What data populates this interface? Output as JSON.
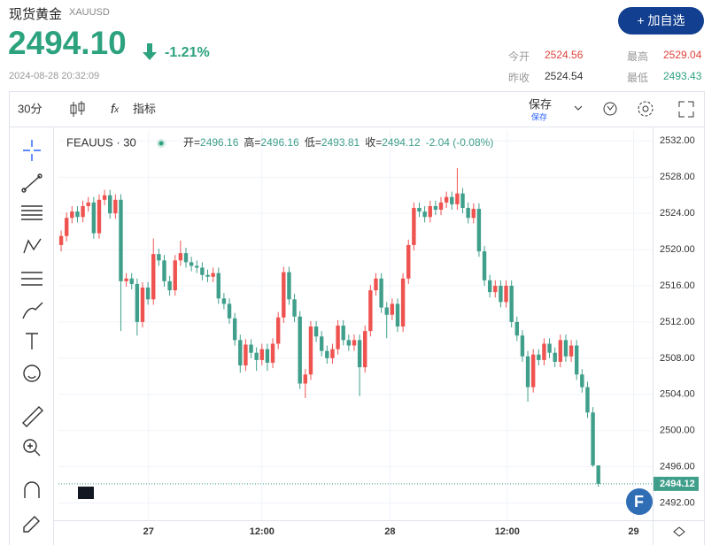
{
  "header": {
    "name": "现货黄金",
    "symbol": "XAUUSD",
    "price": "2494.10",
    "change": "-1.21%",
    "time": "2024-08-28 20:32:09",
    "button": "+ 加自选",
    "stats": [
      [
        "今开",
        "2524.56"
      ],
      [
        "最高",
        "2529.04"
      ],
      [
        "昨收",
        "2524.54"
      ],
      [
        "最低",
        "2493.43"
      ]
    ]
  },
  "toolbar": {
    "interval": "30分",
    "indicators": "指标",
    "save": "保存",
    "save_sub": "保存"
  },
  "chart_data": {
    "type": "candlestick",
    "title": "FEAUUS · 30",
    "ohlc_labels": [
      "开=",
      "高=",
      "低=",
      "收="
    ],
    "change_text": "-2.04 (-0.08%)",
    "up_color": "#ef5350",
    "down_color": "#3f9f8b",
    "xlim": [
      -0.5,
      109
    ],
    "ylim": [
      2490.1,
      2533.2
    ],
    "xticks": [
      {
        "value": 16.1,
        "label": "27"
      },
      {
        "value": 37,
        "label": "12:00"
      },
      {
        "value": 60.6,
        "label": "28"
      },
      {
        "value": 82.2,
        "label": "12:00"
      },
      {
        "value": 105.5,
        "label": "29"
      }
    ],
    "yticks": [
      {
        "value": 2492,
        "label": "2492.00"
      },
      {
        "value": 2496,
        "label": "2496.00"
      },
      {
        "value": 2500,
        "label": "2500.00"
      },
      {
        "value": 2504,
        "label": "2504.00"
      },
      {
        "value": 2508,
        "label": "2508.00"
      },
      {
        "value": 2512,
        "label": "2512.00"
      },
      {
        "value": 2516,
        "label": "2516.00"
      },
      {
        "value": 2520,
        "label": "2520.00"
      },
      {
        "value": 2524,
        "label": "2524.00"
      },
      {
        "value": 2528,
        "label": "2528.00"
      },
      {
        "value": 2532,
        "label": "2532.00"
      }
    ],
    "grid": true,
    "ohlc": [
      [
        2520.5,
        2522.1,
        2519.8,
        2521.5
      ],
      [
        2521.5,
        2524.1,
        2520.9,
        2523.5
      ],
      [
        2523.5,
        2524.8,
        2522.9,
        2524.2
      ],
      [
        2524.2,
        2524.8,
        2523.0,
        2523.6
      ],
      [
        2523.6,
        2525.4,
        2523.0,
        2524.8
      ],
      [
        2524.8,
        2525.8,
        2524.2,
        2525.2
      ],
      [
        2525.2,
        2525.8,
        2521.2,
        2521.8
      ],
      [
        2521.8,
        2526.1,
        2521.2,
        2525.5
      ],
      [
        2525.5,
        2526.6,
        2524.9,
        2526.0
      ],
      [
        2526.0,
        2526.6,
        2523.4,
        2524.0
      ],
      [
        2524.0,
        2526.1,
        2523.4,
        2525.5
      ],
      [
        2525.5,
        2526.1,
        2511.0,
        2516.5
      ],
      [
        2516.5,
        2517.4,
        2515.9,
        2516.8
      ],
      [
        2516.8,
        2517.4,
        2515.6,
        2516.2
      ],
      [
        2516.2,
        2516.8,
        2510.5,
        2512.0
      ],
      [
        2512.0,
        2516.4,
        2511.4,
        2515.8
      ],
      [
        2515.8,
        2516.4,
        2513.9,
        2514.5
      ],
      [
        2514.5,
        2521.2,
        2513.9,
        2519.5
      ],
      [
        2519.5,
        2520.1,
        2518.2,
        2518.8
      ],
      [
        2518.8,
        2519.4,
        2515.9,
        2516.5
      ],
      [
        2516.5,
        2517.1,
        2514.9,
        2515.5
      ],
      [
        2515.5,
        2519.4,
        2514.9,
        2518.8
      ],
      [
        2518.8,
        2521.0,
        2518.2,
        2519.6
      ],
      [
        2519.6,
        2520.2,
        2518.0,
        2518.6
      ],
      [
        2518.6,
        2519.2,
        2517.6,
        2518.2
      ],
      [
        2518.2,
        2518.8,
        2517.4,
        2518.0
      ],
      [
        2518.0,
        2518.6,
        2516.6,
        2517.2
      ],
      [
        2517.2,
        2517.8,
        2516.4,
        2517.0
      ],
      [
        2517.0,
        2518.0,
        2516.4,
        2517.4
      ],
      [
        2517.4,
        2518.0,
        2514.0,
        2514.6
      ],
      [
        2514.6,
        2515.2,
        2513.4,
        2514.0
      ],
      [
        2514.0,
        2514.6,
        2511.8,
        2512.4
      ],
      [
        2512.4,
        2513.0,
        2509.4,
        2510.0
      ],
      [
        2510.0,
        2510.6,
        2506.4,
        2507.2
      ],
      [
        2507.2,
        2510.1,
        2506.6,
        2509.5
      ],
      [
        2509.5,
        2510.1,
        2508.0,
        2508.6
      ],
      [
        2508.6,
        2509.2,
        2506.6,
        2507.8
      ],
      [
        2507.8,
        2509.6,
        2507.2,
        2509.0
      ],
      [
        2509.0,
        2509.6,
        2506.6,
        2507.5
      ],
      [
        2507.5,
        2510.2,
        2506.9,
        2509.6
      ],
      [
        2509.6,
        2513.1,
        2509.0,
        2512.5
      ],
      [
        2512.5,
        2518.1,
        2511.9,
        2517.5
      ],
      [
        2517.5,
        2518.1,
        2513.9,
        2514.5
      ],
      [
        2514.5,
        2515.1,
        2512.0,
        2512.6
      ],
      [
        2512.6,
        2513.2,
        2504.6,
        2505.2
      ],
      [
        2505.2,
        2506.8,
        2503.6,
        2506.2
      ],
      [
        2506.2,
        2512.1,
        2505.6,
        2511.5
      ],
      [
        2511.5,
        2512.1,
        2509.8,
        2510.4
      ],
      [
        2510.4,
        2511.0,
        2508.2,
        2508.8
      ],
      [
        2508.8,
        2509.4,
        2507.4,
        2508.0
      ],
      [
        2508.0,
        2509.6,
        2507.4,
        2509.0
      ],
      [
        2509.0,
        2512.2,
        2508.4,
        2511.6
      ],
      [
        2511.6,
        2512.2,
        2509.4,
        2510.0
      ],
      [
        2510.0,
        2510.6,
        2508.8,
        2509.4
      ],
      [
        2509.4,
        2510.6,
        2508.8,
        2510.0
      ],
      [
        2510.0,
        2510.6,
        2503.8,
        2507.0
      ],
      [
        2507.0,
        2511.6,
        2506.4,
        2511.0
      ],
      [
        2511.0,
        2516.1,
        2510.4,
        2515.5
      ],
      [
        2515.5,
        2517.4,
        2514.9,
        2516.8
      ],
      [
        2516.8,
        2517.4,
        2513.0,
        2513.6
      ],
      [
        2513.6,
        2514.2,
        2510.2,
        2512.8
      ],
      [
        2512.8,
        2514.6,
        2512.2,
        2514.0
      ],
      [
        2514.0,
        2514.6,
        2510.9,
        2511.5
      ],
      [
        2511.5,
        2517.4,
        2510.9,
        2516.8
      ],
      [
        2516.8,
        2521.1,
        2516.2,
        2520.5
      ],
      [
        2520.5,
        2525.2,
        2519.9,
        2524.6
      ],
      [
        2524.6,
        2525.2,
        2523.6,
        2524.2
      ],
      [
        2524.2,
        2524.8,
        2523.0,
        2523.6
      ],
      [
        2523.6,
        2525.4,
        2523.0,
        2524.8
      ],
      [
        2524.8,
        2525.4,
        2523.8,
        2524.4
      ],
      [
        2524.4,
        2525.8,
        2523.8,
        2525.2
      ],
      [
        2525.2,
        2526.4,
        2524.6,
        2525.8
      ],
      [
        2525.8,
        2526.4,
        2524.4,
        2525.0
      ],
      [
        2525.0,
        2529.0,
        2524.4,
        2526.2
      ],
      [
        2526.2,
        2526.8,
        2524.0,
        2524.6
      ],
      [
        2524.6,
        2525.2,
        2522.9,
        2523.5
      ],
      [
        2523.5,
        2525.1,
        2522.9,
        2524.5
      ],
      [
        2524.5,
        2525.1,
        2519.2,
        2519.8
      ],
      [
        2519.8,
        2520.4,
        2516.0,
        2516.6
      ],
      [
        2516.6,
        2517.2,
        2514.7,
        2515.3
      ],
      [
        2515.3,
        2516.6,
        2514.7,
        2516.0
      ],
      [
        2516.0,
        2516.6,
        2513.6,
        2514.2
      ],
      [
        2514.2,
        2516.6,
        2513.6,
        2516.0
      ],
      [
        2516.0,
        2516.6,
        2511.4,
        2512.0
      ],
      [
        2512.0,
        2512.6,
        2509.9,
        2510.5
      ],
      [
        2510.5,
        2511.1,
        2507.6,
        2508.2
      ],
      [
        2508.2,
        2508.8,
        2503.2,
        2504.8
      ],
      [
        2504.8,
        2509.0,
        2504.2,
        2508.4
      ],
      [
        2508.4,
        2509.0,
        2507.2,
        2507.8
      ],
      [
        2507.8,
        2510.2,
        2507.2,
        2509.6
      ],
      [
        2509.6,
        2510.2,
        2508.0,
        2508.6
      ],
      [
        2508.6,
        2509.2,
        2507.0,
        2507.6
      ],
      [
        2507.6,
        2510.6,
        2507.0,
        2510.0
      ],
      [
        2510.0,
        2510.6,
        2507.6,
        2508.2
      ],
      [
        2508.2,
        2510.0,
        2507.6,
        2509.4
      ],
      [
        2509.4,
        2510.0,
        2505.6,
        2506.2
      ],
      [
        2506.2,
        2506.8,
        2504.2,
        2504.8
      ],
      [
        2504.8,
        2505.4,
        2501.4,
        2502.0
      ],
      [
        2502.0,
        2502.6,
        2496.0,
        2496.16
      ],
      [
        2496.16,
        2496.16,
        2493.81,
        2494.12
      ]
    ]
  }
}
